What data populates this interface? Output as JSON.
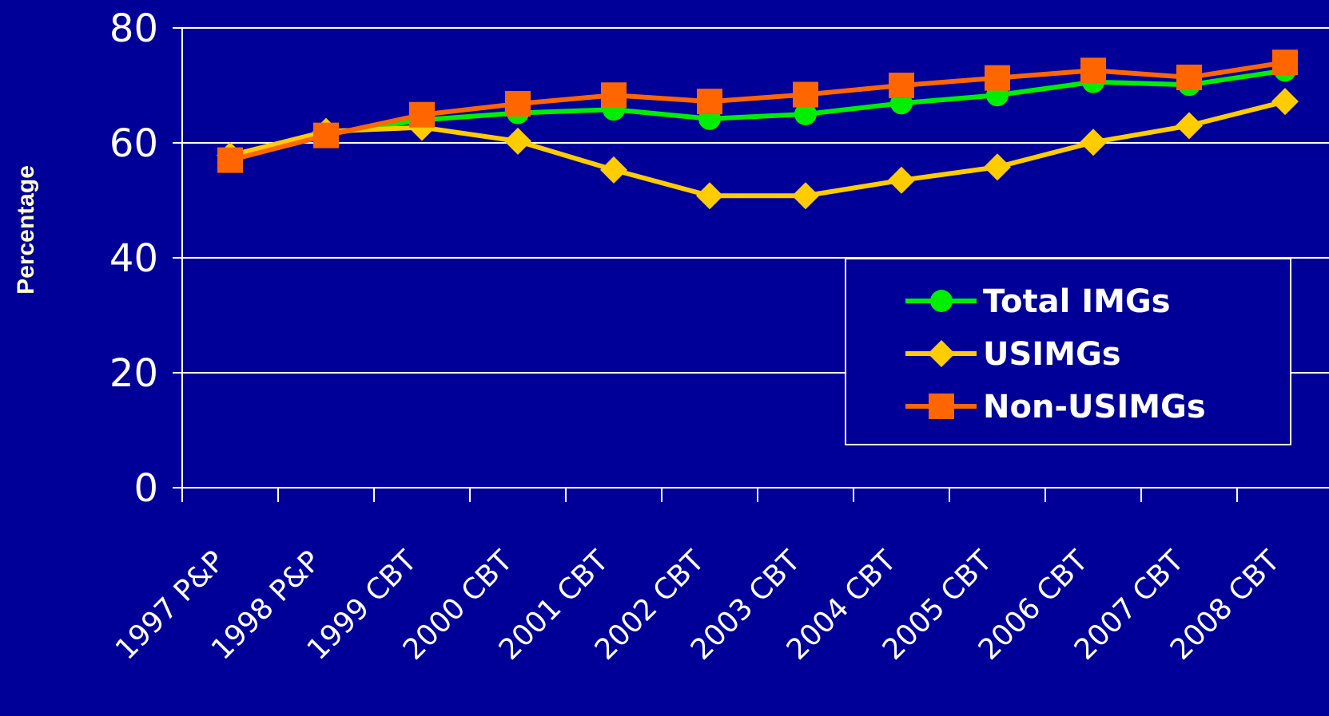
{
  "chart_data": {
    "type": "line",
    "title": "",
    "xlabel": "",
    "ylabel": "Percentage",
    "ylim": [
      0,
      80
    ],
    "yticks": [
      0,
      20,
      40,
      60,
      80
    ],
    "grid": "horizontal",
    "legend_position": "right-middle",
    "categories": [
      "1997 P&P",
      "1998 P&P",
      "1999 CBT",
      "2000 CBT",
      "2001 CBT",
      "2002 CBT",
      "2003 CBT",
      "2004 CBT",
      "2005 CBT",
      "2006 CBT",
      "2007 CBT",
      "2008 CBT"
    ],
    "series": [
      {
        "name": "Total IMGs",
        "color": "#00ee00",
        "marker": "circle",
        "values": [
          57.5,
          61.5,
          64,
          65.2,
          65.8,
          64.2,
          65,
          66.9,
          68.3,
          70.6,
          70.1,
          72.6
        ]
      },
      {
        "name": "USIMGs",
        "color": "#ffcc00",
        "marker": "diamond",
        "values": [
          57.8,
          62,
          62.7,
          60.3,
          55.3,
          50.8,
          50.8,
          53.5,
          55.8,
          60.1,
          63,
          67.2
        ]
      },
      {
        "name": "Non-USIMGs",
        "color": "#ff6600",
        "marker": "square",
        "values": [
          57,
          61.3,
          64.9,
          66.8,
          68.3,
          67.2,
          68.4,
          70,
          71.3,
          72.6,
          71.4,
          74
        ]
      }
    ]
  }
}
